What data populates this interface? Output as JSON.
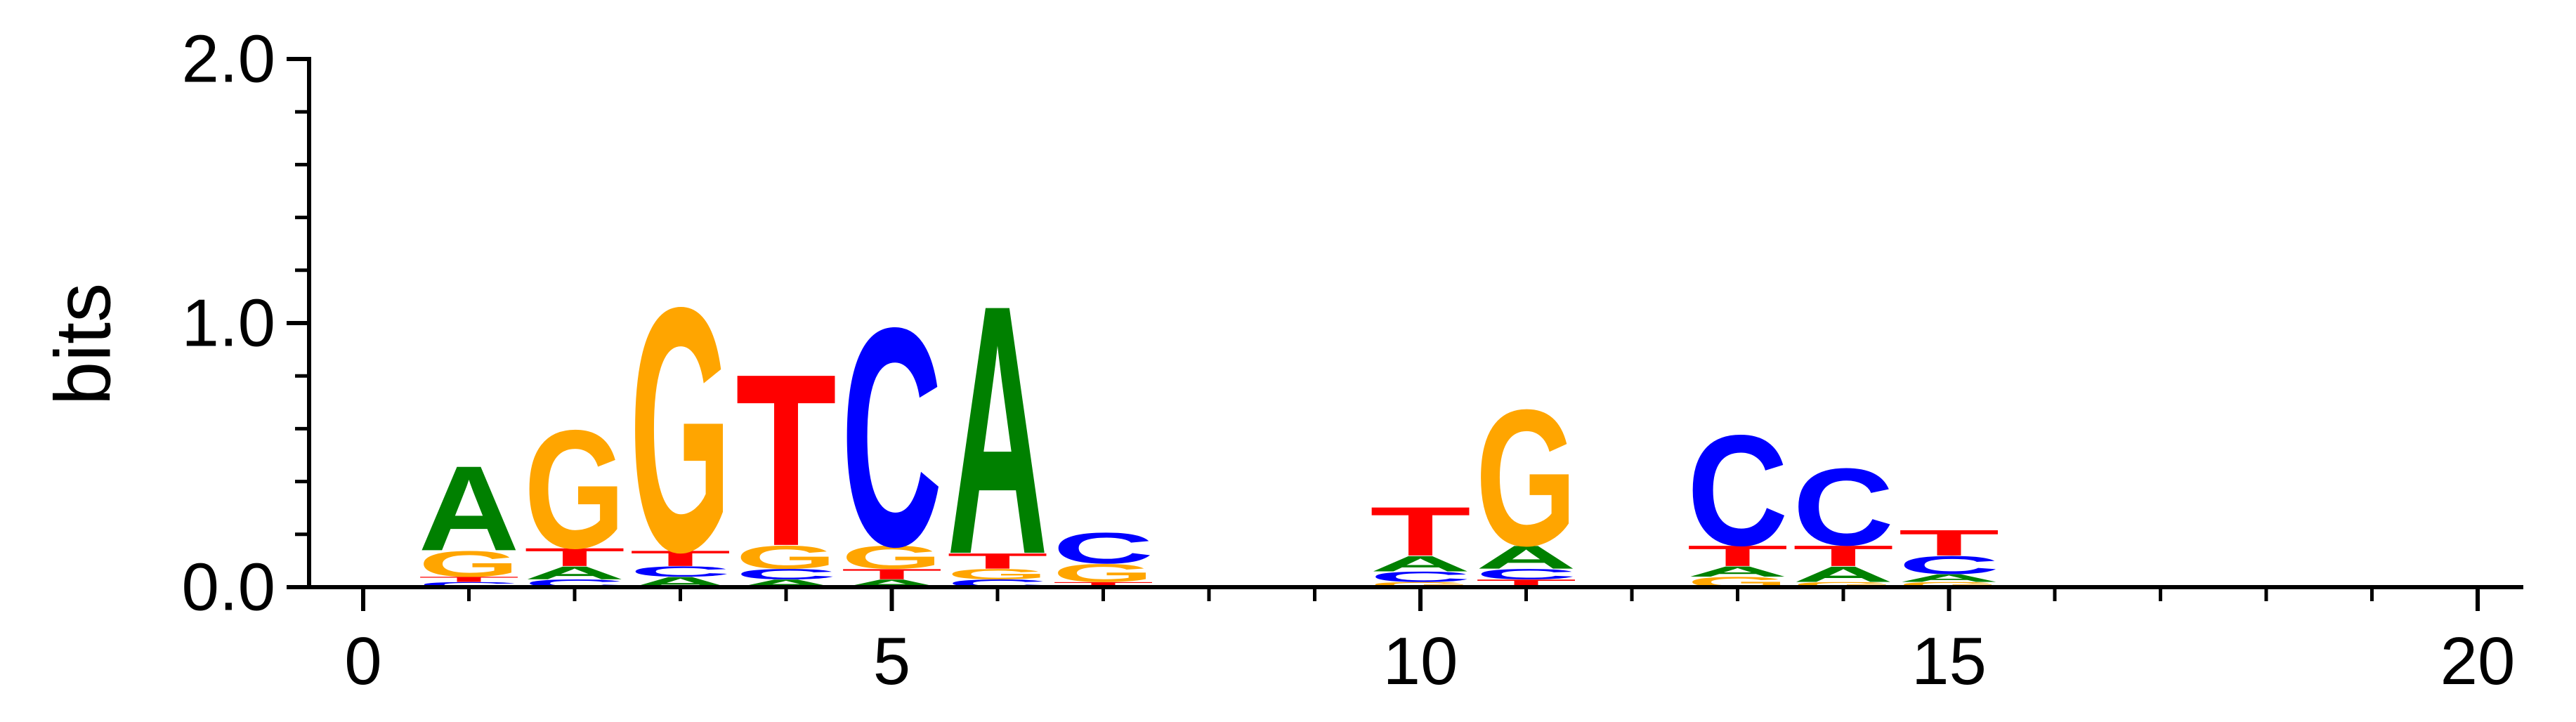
{
  "chart_data": {
    "type": "sequence-logo",
    "ylabel": "bits",
    "ylim": [
      0,
      2.0
    ],
    "xlim": [
      0,
      20
    ],
    "y_major_ticks": [
      0.0,
      1.0,
      2.0
    ],
    "y_tick_labels": [
      "0.0",
      "1.0",
      "2.0"
    ],
    "x_major_ticks": [
      0,
      5,
      10,
      15,
      20
    ],
    "x_tick_labels": [
      "0",
      "5",
      "10",
      "15",
      "20"
    ],
    "x_minor_ticks": [
      1,
      2,
      3,
      4,
      6,
      7,
      8,
      9,
      11,
      12,
      13,
      14,
      16,
      17,
      18,
      19
    ],
    "y_minor_step": 0.2,
    "colors": {
      "A": "#008000",
      "C": "#0000ff",
      "G": "#ffa500",
      "T": "#ff0000"
    },
    "positions": [
      {
        "x": 1,
        "stack": [
          [
            "C",
            0.02
          ],
          [
            "T",
            0.02
          ],
          [
            "G",
            0.1
          ],
          [
            "A",
            0.33
          ]
        ]
      },
      {
        "x": 2,
        "stack": [
          [
            "C",
            0.03
          ],
          [
            "A",
            0.05
          ],
          [
            "T",
            0.07
          ],
          [
            "G",
            0.46
          ]
        ]
      },
      {
        "x": 3,
        "stack": [
          [
            "A",
            0.04
          ],
          [
            "C",
            0.04
          ],
          [
            "T",
            0.06
          ],
          [
            "G",
            0.95
          ]
        ]
      },
      {
        "x": 4,
        "stack": [
          [
            "A",
            0.03
          ],
          [
            "C",
            0.04
          ],
          [
            "G",
            0.09
          ],
          [
            "T",
            0.67
          ]
        ]
      },
      {
        "x": 5,
        "stack": [
          [
            "A",
            0.03
          ],
          [
            "T",
            0.04
          ],
          [
            "G",
            0.09
          ],
          [
            "C",
            0.85
          ]
        ]
      },
      {
        "x": 6,
        "stack": [
          [
            "C",
            0.03
          ],
          [
            "G",
            0.04
          ],
          [
            "T",
            0.06
          ],
          [
            "A",
            0.97
          ]
        ]
      },
      {
        "x": 7,
        "stack": [
          [
            "T",
            0.02
          ],
          [
            "G",
            0.07
          ],
          [
            "C",
            0.12
          ]
        ]
      },
      {
        "x": 8,
        "stack": [
          [
            "C",
            0.008
          ]
        ]
      },
      {
        "x": 10,
        "stack": [
          [
            "G",
            0.02
          ],
          [
            "C",
            0.04
          ],
          [
            "A",
            0.06
          ],
          [
            "T",
            0.19
          ]
        ]
      },
      {
        "x": 11,
        "stack": [
          [
            "T",
            0.03
          ],
          [
            "C",
            0.04
          ],
          [
            "A",
            0.09
          ],
          [
            "G",
            0.53
          ]
        ]
      },
      {
        "x": 12,
        "stack": [
          [
            "A",
            0.008
          ]
        ]
      },
      {
        "x": 13,
        "stack": [
          [
            "G",
            0.04
          ],
          [
            "A",
            0.04
          ],
          [
            "T",
            0.08
          ],
          [
            "C",
            0.43
          ]
        ]
      },
      {
        "x": 14,
        "stack": [
          [
            "G",
            0.02
          ],
          [
            "A",
            0.06
          ],
          [
            "T",
            0.08
          ],
          [
            "C",
            0.3
          ]
        ]
      },
      {
        "x": 15,
        "stack": [
          [
            "G",
            0.02
          ],
          [
            "A",
            0.03
          ],
          [
            "C",
            0.07
          ],
          [
            "T",
            0.1
          ]
        ]
      }
    ]
  }
}
